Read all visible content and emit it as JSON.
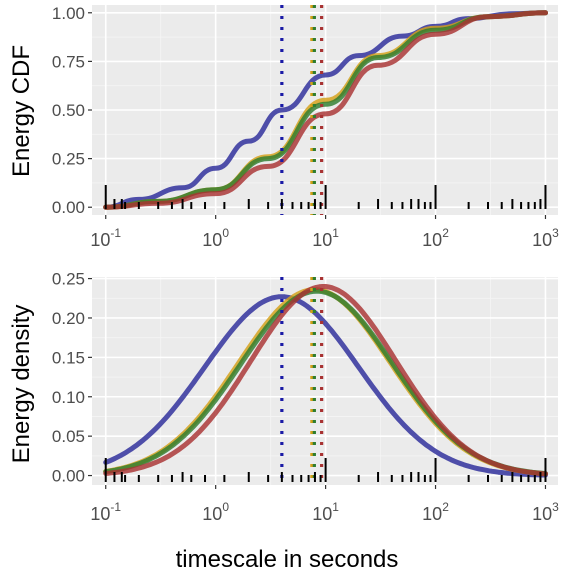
{
  "chart_data": [
    {
      "type": "line",
      "title": "",
      "ylabel": "Energy CDF",
      "xlabel": "",
      "xscale": "log10",
      "xlim": [
        0.075,
        1300
      ],
      "ylim": [
        -0.04,
        1.04
      ],
      "yticks": [
        0.0,
        0.25,
        0.5,
        0.75,
        1.0
      ],
      "ytick_labels": [
        "0.00",
        "0.25",
        "0.50",
        "0.75",
        "1.00"
      ],
      "xticks": [
        0.1,
        1,
        10,
        100,
        1000
      ],
      "xtick_base": "10",
      "xtick_exponents": [
        "-1",
        "0",
        "1",
        "2",
        "3"
      ],
      "grid": true,
      "legend": "none",
      "series": [
        {
          "color": "#2b2b9a",
          "x": [
            0.1,
            0.2,
            0.5,
            1,
            2,
            4,
            10,
            20,
            50,
            100,
            200,
            500,
            1000
          ],
          "y": [
            0.0,
            0.04,
            0.1,
            0.2,
            0.34,
            0.5,
            0.68,
            0.78,
            0.88,
            0.93,
            0.97,
            0.995,
            1.0
          ]
        },
        {
          "color": "#d4a017",
          "x": [
            0.1,
            0.3,
            1,
            3,
            10,
            30,
            100,
            300,
            1000
          ],
          "y": [
            0.0,
            0.03,
            0.09,
            0.26,
            0.55,
            0.78,
            0.92,
            0.98,
            1.0
          ]
        },
        {
          "color": "#2e7d2e",
          "x": [
            0.1,
            0.3,
            1,
            3,
            10,
            30,
            100,
            300,
            1000
          ],
          "y": [
            0.0,
            0.03,
            0.09,
            0.25,
            0.53,
            0.77,
            0.91,
            0.98,
            1.0
          ]
        },
        {
          "color": "#a83232",
          "x": [
            0.1,
            0.3,
            1,
            3,
            10,
            30,
            100,
            300,
            1000
          ],
          "y": [
            0.0,
            0.02,
            0.07,
            0.21,
            0.48,
            0.73,
            0.89,
            0.98,
            1.0
          ]
        }
      ],
      "vlines": [
        {
          "x": 4.0,
          "color": "#1a1aa6"
        },
        {
          "x": 7.5,
          "color": "#d4a017"
        },
        {
          "x": 7.9,
          "color": "#2e7d2e"
        },
        {
          "x": 9.2,
          "color": "#a83232"
        }
      ],
      "rug": [
        0.1,
        0.12,
        0.14,
        0.15,
        0.2,
        0.3,
        0.4,
        0.5,
        0.6,
        0.8,
        1.2,
        2,
        3,
        4,
        5,
        6,
        7,
        8,
        9,
        10,
        20,
        30,
        40,
        50,
        60,
        70,
        80,
        90,
        100,
        200,
        300,
        400,
        500,
        600,
        700,
        800,
        900,
        1000
      ]
    },
    {
      "type": "line",
      "title": "",
      "ylabel": "Energy density",
      "xlabel": "timescale in seconds",
      "xscale": "log10",
      "xlim": [
        0.075,
        1300
      ],
      "ylim": [
        -0.012,
        0.252
      ],
      "yticks": [
        0.0,
        0.05,
        0.1,
        0.15,
        0.2,
        0.25
      ],
      "ytick_labels": [
        "0.00",
        "0.05",
        "0.10",
        "0.15",
        "0.20",
        "0.25"
      ],
      "xticks": [
        0.1,
        1,
        10,
        100,
        1000
      ],
      "xtick_base": "10",
      "xtick_exponents": [
        "-1",
        "0",
        "1",
        "2",
        "3"
      ],
      "grid": true,
      "legend": "none",
      "series": [
        {
          "color": "#2b2b9a",
          "mu": 0.6,
          "sigma": 0.7,
          "amp": 0.227
        },
        {
          "color": "#d4a017",
          "mu": 0.9,
          "sigma": 0.69,
          "amp": 0.236
        },
        {
          "color": "#2e7d2e",
          "mu": 0.92,
          "sigma": 0.69,
          "amp": 0.234
        },
        {
          "color": "#a83232",
          "mu": 0.98,
          "sigma": 0.66,
          "amp": 0.24
        }
      ],
      "vlines": [
        {
          "x": 4.0,
          "color": "#1a1aa6"
        },
        {
          "x": 7.5,
          "color": "#d4a017"
        },
        {
          "x": 7.9,
          "color": "#2e7d2e"
        },
        {
          "x": 9.2,
          "color": "#a83232"
        }
      ],
      "rug": [
        0.1,
        0.12,
        0.14,
        0.15,
        0.2,
        0.3,
        0.4,
        0.5,
        0.6,
        0.8,
        1.2,
        2,
        3,
        4,
        5,
        6,
        7,
        8,
        9,
        10,
        20,
        30,
        40,
        50,
        60,
        70,
        80,
        90,
        100,
        200,
        300,
        400,
        500,
        600,
        700,
        800,
        900,
        1000
      ]
    }
  ]
}
